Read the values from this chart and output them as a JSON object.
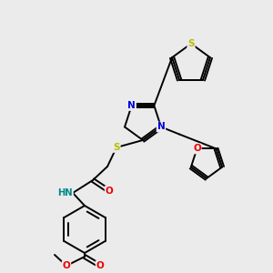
{
  "bg_color": "#ebebeb",
  "atom_colors": {
    "C": "#000000",
    "N": "#0000dd",
    "O": "#ee0000",
    "S": "#bbbb00",
    "H": "#008888"
  },
  "bond_color": "#000000",
  "bond_lw": 1.4,
  "figsize": [
    3.0,
    3.0
  ],
  "dpi": 100
}
